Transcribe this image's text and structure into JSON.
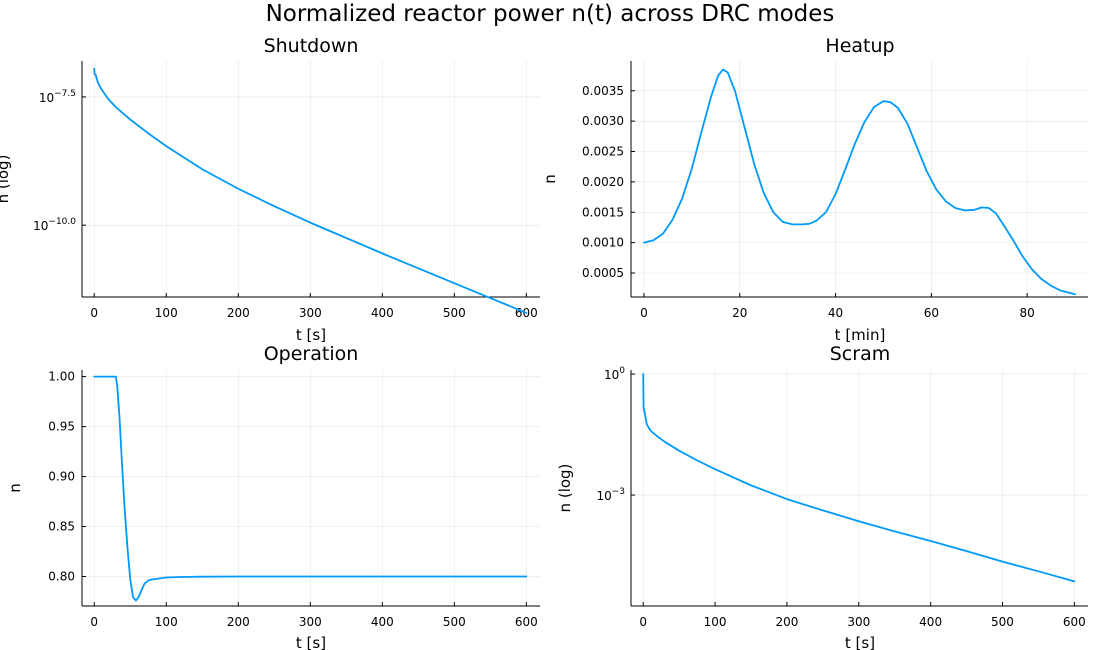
{
  "figure": {
    "title": "Normalized reactor power n(t) across DRC modes"
  },
  "chart_data": [
    {
      "type": "line",
      "title": "Shutdown",
      "xlabel": "t [s]",
      "ylabel": "n (log)",
      "yscale": "log",
      "xlim": [
        -17,
        619
      ],
      "ylim_log10": [
        -11.4,
        -6.8
      ],
      "xticks": [
        0,
        100,
        200,
        300,
        400,
        500,
        600
      ],
      "yticks_log10": [
        -10.0,
        -7.5
      ],
      "ytick_labels": [
        {
          "base": "10",
          "exp": "−10.0"
        },
        {
          "base": "10",
          "exp": "−7.5"
        }
      ],
      "grid": true,
      "series": [
        {
          "color": "#009AFA",
          "x": [
            0,
            0,
            0.5,
            2,
            5,
            10,
            20,
            30,
            50,
            75,
            100,
            150,
            200,
            250,
            300,
            350,
            400,
            450,
            500,
            550,
            600
          ],
          "y_log10": [
            -6.95,
            -6.95,
            -7.06,
            -7.07,
            -7.22,
            -7.35,
            -7.55,
            -7.7,
            -7.94,
            -8.21,
            -8.46,
            -8.91,
            -9.29,
            -9.63,
            -9.95,
            -10.25,
            -10.55,
            -10.84,
            -11.13,
            -11.42,
            -11.71
          ]
        }
      ]
    },
    {
      "type": "line",
      "title": "Heatup",
      "xlabel": "t [min]",
      "ylabel": "n",
      "xlim": [
        -2.7,
        92.7
      ],
      "ylim": [
        0.000105,
        0.00399
      ],
      "xticks": [
        0,
        20,
        40,
        60,
        80
      ],
      "yticks": [
        "0.0005",
        "0.0010",
        "0.0015",
        "0.0020",
        "0.0025",
        "0.0030",
        "0.0035"
      ],
      "grid": true,
      "series": [
        {
          "color": "#009AFA",
          "x": [
            0,
            2,
            4,
            6,
            8,
            10,
            12,
            14,
            15.5,
            16.5,
            17.5,
            19,
            21,
            23,
            25,
            27,
            29,
            31,
            33,
            34.5,
            36,
            38,
            40,
            42,
            44,
            46,
            48,
            50,
            51.5,
            53,
            55,
            57,
            59,
            61,
            63,
            65,
            67,
            69,
            70.5,
            72,
            73.5,
            75,
            77,
            79,
            81,
            83,
            85,
            87,
            89,
            90
          ],
          "y": [
            0.001,
            0.00104,
            0.00115,
            0.00138,
            0.00173,
            0.00222,
            0.00282,
            0.0034,
            0.00375,
            0.00385,
            0.0038,
            0.0035,
            0.0029,
            0.0023,
            0.00182,
            0.0015,
            0.00134,
            0.0013,
            0.0013,
            0.00131,
            0.00136,
            0.0015,
            0.0018,
            0.0022,
            0.00262,
            0.00298,
            0.00323,
            0.00333,
            0.00331,
            0.00322,
            0.00296,
            0.00257,
            0.00218,
            0.00188,
            0.00168,
            0.00157,
            0.00153,
            0.00154,
            0.00158,
            0.00157,
            0.00148,
            0.0013,
            0.00105,
            0.00078,
            0.00056,
            0.0004,
            0.00029,
            0.00021,
            0.00017,
            0.00015
          ]
        }
      ]
    },
    {
      "type": "line",
      "title": "Operation",
      "xlabel": "t [s]",
      "ylabel": "n",
      "xlim": [
        -17,
        619
      ],
      "ylim": [
        0.7705,
        1.0066
      ],
      "xticks": [
        0,
        100,
        200,
        300,
        400,
        500,
        600
      ],
      "yticks": [
        "0.80",
        "0.85",
        "0.90",
        "0.95",
        "1.00"
      ],
      "grid": true,
      "series": [
        {
          "color": "#009AFA",
          "x": [
            0,
            30,
            32,
            35,
            38,
            42,
            46,
            50,
            54,
            58,
            62,
            66,
            70,
            75,
            80,
            90,
            100,
            120,
            150,
            200,
            250,
            300,
            400,
            500,
            600
          ],
          "y": [
            1.0,
            1.0,
            0.99,
            0.96,
            0.92,
            0.87,
            0.83,
            0.797,
            0.779,
            0.776,
            0.78,
            0.787,
            0.793,
            0.796,
            0.797,
            0.798,
            0.799,
            0.7995,
            0.7998,
            0.8,
            0.8,
            0.8,
            0.8,
            0.8,
            0.8
          ]
        }
      ]
    },
    {
      "type": "line",
      "title": "Scram",
      "xlabel": "t [s]",
      "ylabel": "n (log)",
      "yscale": "log",
      "xlim": [
        -17,
        619
      ],
      "ylim_log10": [
        -5.75,
        0.1
      ],
      "xticks": [
        0,
        100,
        200,
        300,
        400,
        500,
        600
      ],
      "yticks_log10": [
        -3,
        0
      ],
      "ytick_labels": [
        {
          "base": "10",
          "exp": "−3"
        },
        {
          "base": "10",
          "exp": "0"
        }
      ],
      "grid": true,
      "series": [
        {
          "color": "#009AFA",
          "x": [
            0,
            0,
            0.5,
            2,
            5,
            10,
            20,
            30,
            50,
            75,
            100,
            150,
            200,
            250,
            300,
            350,
            400,
            450,
            500,
            550,
            600
          ],
          "y_log10": [
            0,
            0,
            -0.83,
            -0.95,
            -1.25,
            -1.4,
            -1.55,
            -1.68,
            -1.9,
            -2.14,
            -2.36,
            -2.76,
            -3.1,
            -3.38,
            -3.65,
            -3.9,
            -4.14,
            -4.39,
            -4.65,
            -4.89,
            -5.14
          ]
        }
      ]
    }
  ]
}
